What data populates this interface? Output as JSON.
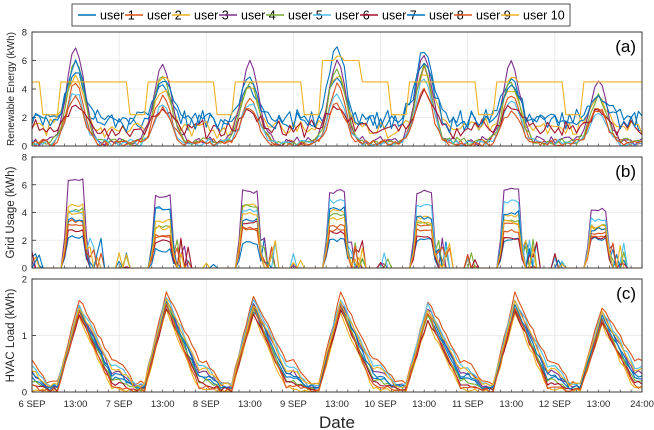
{
  "chart_data": {
    "type": "line",
    "xlabel": "Date",
    "x_tick_labels": [
      "6 SEP",
      "13:00",
      "7 SEP",
      "13:00",
      "8 SEP",
      "13:00",
      "9 SEP",
      "13:00",
      "10 SEP",
      "13:00",
      "11 SEP",
      "13:00",
      "12 SEP",
      "13:00",
      "24:00"
    ],
    "x_range_hours": [
      0,
      168
    ],
    "legend": {
      "placement": "top-center",
      "entries": [
        "user 1",
        "user 2",
        "user 3",
        "user 4",
        "user 5",
        "user 6",
        "user 7",
        "user 8",
        "user 9",
        "user 10"
      ]
    },
    "series_colors": [
      "#0072BD",
      "#D95319",
      "#EDB120",
      "#7E2F8E",
      "#77AC30",
      "#4DBEEE",
      "#A2142F",
      "#0072BD",
      "#D95319",
      "#EDB120"
    ],
    "panels": [
      {
        "label": "(a)",
        "ylabel": "Renewable Energy (kWh)",
        "ylim": [
          0,
          8
        ],
        "yticks": [
          "0",
          "2",
          "4",
          "6",
          "8"
        ],
        "grid": true,
        "day_peaks": [
          [
            5.2,
            4.2,
            4.0,
            4.8,
            6.8,
            4.8,
            3.6
          ],
          [
            4.6,
            3.5,
            3.4,
            4.2,
            5.4,
            3.6,
            2.7
          ],
          [
            5.0,
            4.0,
            4.2,
            5.0,
            5.2,
            4.0,
            3.4
          ],
          [
            7.0,
            5.8,
            6.0,
            6.0,
            6.4,
            6.0,
            4.6
          ],
          [
            6.0,
            5.0,
            4.6,
            5.5,
            5.6,
            4.5,
            3.5
          ],
          [
            3.8,
            2.8,
            3.0,
            3.5,
            4.8,
            3.2,
            2.5
          ],
          [
            2.7,
            2.4,
            2.5,
            2.8,
            3.8,
            2.8,
            2.4
          ],
          [
            5.8,
            4.6,
            4.8,
            6.9,
            6.0,
            4.2,
            3.5
          ],
          [
            3.5,
            2.6,
            2.8,
            3.0,
            4.0,
            2.5,
            2.6
          ],
          [
            4.5,
            4.5,
            4.5,
            6.0,
            4.5,
            4.5,
            4.5
          ]
        ],
        "night_levels": [
          2.5,
          0.3,
          1.8,
          0.5,
          0.4,
          0.3,
          1.7,
          2.4,
          0.2,
          4.5
        ]
      },
      {
        "label": "(b)",
        "ylabel": "Grid Usage (kWh)",
        "ylim": [
          0,
          8
        ],
        "yticks": [
          "0",
          "2",
          "4",
          "6",
          "8"
        ],
        "grid": true,
        "day_peaks": [
          [
            2.2,
            1.3,
            1.8,
            2.0,
            2.0,
            2.0,
            2.1
          ],
          [
            3.4,
            2.4,
            2.8,
            3.0,
            3.1,
            3.2,
            2.5
          ],
          [
            4.5,
            3.4,
            4.5,
            4.1,
            3.6,
            3.8,
            2.9
          ],
          [
            6.4,
            5.2,
            5.5,
            5.5,
            5.5,
            5.6,
            4.2
          ],
          [
            4.2,
            3.0,
            4.5,
            3.8,
            3.2,
            3.4,
            3.0
          ],
          [
            4.0,
            4.2,
            4.2,
            4.8,
            4.5,
            4.8,
            3.5
          ],
          [
            2.7,
            1.9,
            3.3,
            2.6,
            2.2,
            2.1,
            2.2
          ],
          [
            3.5,
            4.3,
            3.5,
            4.3,
            3.6,
            4.0,
            2.8
          ],
          [
            3.2,
            2.2,
            2.9,
            2.8,
            2.7,
            2.7,
            2.3
          ],
          [
            4.0,
            2.9,
            3.9,
            3.5,
            3.3,
            3.3,
            3.0
          ]
        ]
      },
      {
        "label": "(c)",
        "ylabel": "HVAC Load (kWh)",
        "ylim": [
          0,
          2
        ],
        "yticks": [
          "0",
          "1",
          "2"
        ],
        "grid": true,
        "day_peaks": [
          [
            1.45,
            1.55,
            1.45,
            1.45,
            1.4,
            1.5,
            1.3
          ],
          [
            1.65,
            1.8,
            1.7,
            1.75,
            1.6,
            1.75,
            1.5
          ],
          [
            1.35,
            1.45,
            1.35,
            1.4,
            1.25,
            1.4,
            1.2
          ],
          [
            1.5,
            1.65,
            1.6,
            1.6,
            1.5,
            1.65,
            1.4
          ],
          [
            1.4,
            1.55,
            1.45,
            1.5,
            1.35,
            1.5,
            1.25
          ],
          [
            1.55,
            1.7,
            1.65,
            1.65,
            1.55,
            1.65,
            1.45
          ],
          [
            1.35,
            1.5,
            1.4,
            1.45,
            1.3,
            1.45,
            1.25
          ],
          [
            1.45,
            1.6,
            1.55,
            1.55,
            1.45,
            1.55,
            1.35
          ],
          [
            1.4,
            1.55,
            1.5,
            1.5,
            1.4,
            1.5,
            1.3
          ],
          [
            1.5,
            1.65,
            1.55,
            1.6,
            1.45,
            1.6,
            1.4
          ]
        ],
        "night_levels": [
          0.25,
          0.55,
          0.05,
          0.35,
          0.2,
          0.45,
          0.15,
          0.3,
          0.1,
          0.4
        ]
      }
    ]
  }
}
